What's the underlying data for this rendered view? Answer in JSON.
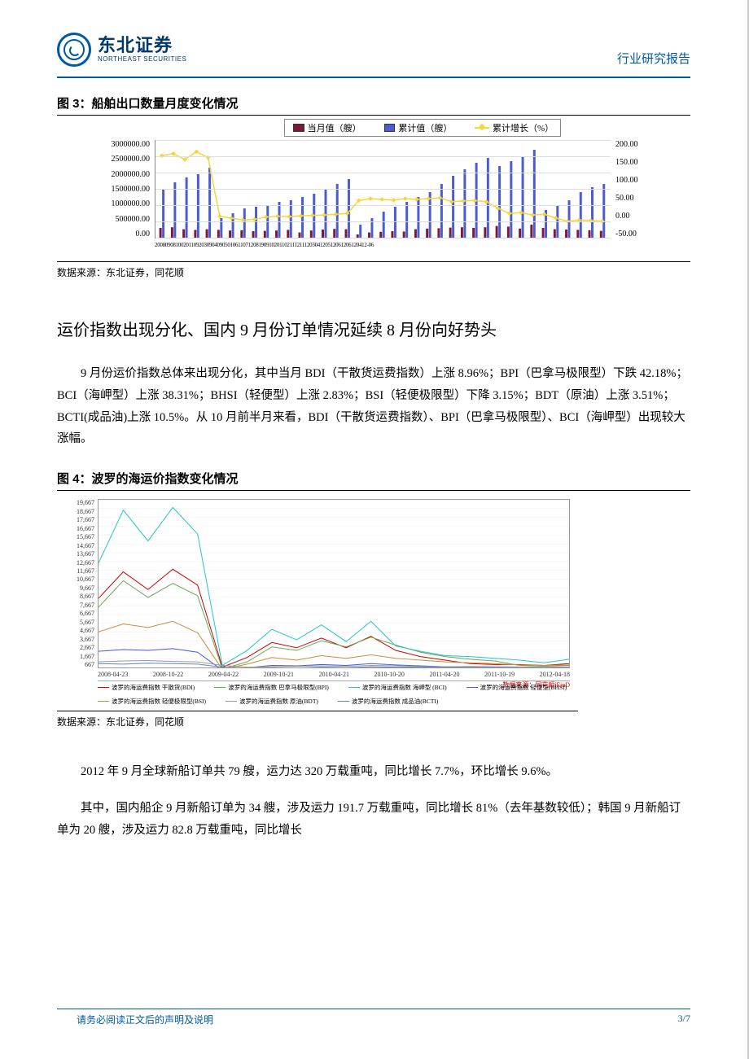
{
  "header": {
    "logo_cn": "东北证券",
    "logo_en": "NORTHEAST SECURITIES",
    "report_type": "行业研究报告"
  },
  "fig3": {
    "title": "图 3：船舶出口数量月度变化情况",
    "legend": [
      {
        "label": "当月值（艘）",
        "color": "#7a1a3a",
        "type": "bar"
      },
      {
        "label": "累计值（艘）",
        "color": "#4a5bd6",
        "type": "bar"
      },
      {
        "label": "累计增长（%）",
        "color": "#f4d63a",
        "type": "line"
      }
    ],
    "y_left": {
      "min": 0,
      "max": 3000000,
      "step": 500000,
      "labels": [
        "3000000.00",
        "2500000.00",
        "2000000.00",
        "1500000.00",
        "1000000.00",
        "500000.00",
        "0.00"
      ]
    },
    "y_right": {
      "min": -50,
      "max": 200,
      "step": 50,
      "labels": [
        "200.00",
        "150.00",
        "100.00",
        "50.00",
        "0.00",
        "-50.00"
      ]
    },
    "x_text": "2008090810020110920309040905010611071208190910201102111211120304120512061206120412-06",
    "bars": [
      {
        "m": 300000,
        "c": 1500000,
        "g": 160
      },
      {
        "m": 320000,
        "c": 1700000,
        "g": 165
      },
      {
        "m": 260000,
        "c": 1850000,
        "g": 150
      },
      {
        "m": 240000,
        "c": 1950000,
        "g": 170
      },
      {
        "m": 260000,
        "c": 2150000,
        "g": 155
      },
      {
        "m": 240000,
        "c": 600000,
        "g": 5
      },
      {
        "m": 220000,
        "c": 750000,
        "g": 0
      },
      {
        "m": 230000,
        "c": 900000,
        "g": -5
      },
      {
        "m": 200000,
        "c": 950000,
        "g": -3
      },
      {
        "m": 210000,
        "c": 1000000,
        "g": 3
      },
      {
        "m": 220000,
        "c": 1100000,
        "g": 5
      },
      {
        "m": 240000,
        "c": 1150000,
        "g": 4
      },
      {
        "m": 160000,
        "c": 1250000,
        "g": 6
      },
      {
        "m": 220000,
        "c": 1350000,
        "g": 7
      },
      {
        "m": 250000,
        "c": 1500000,
        "g": 8
      },
      {
        "m": 270000,
        "c": 1650000,
        "g": 10
      },
      {
        "m": 260000,
        "c": 1800000,
        "g": 12
      },
      {
        "m": 100000,
        "c": 400000,
        "g": 45
      },
      {
        "m": 160000,
        "c": 600000,
        "g": 50
      },
      {
        "m": 180000,
        "c": 800000,
        "g": 48
      },
      {
        "m": 200000,
        "c": 950000,
        "g": 46
      },
      {
        "m": 190000,
        "c": 1100000,
        "g": 50
      },
      {
        "m": 260000,
        "c": 1250000,
        "g": 48
      },
      {
        "m": 280000,
        "c": 1400000,
        "g": 50
      },
      {
        "m": 290000,
        "c": 1650000,
        "g": 52
      },
      {
        "m": 310000,
        "c": 1900000,
        "g": 42
      },
      {
        "m": 320000,
        "c": 2100000,
        "g": 44
      },
      {
        "m": 300000,
        "c": 2300000,
        "g": 45
      },
      {
        "m": 320000,
        "c": 2450000,
        "g": 42
      },
      {
        "m": 360000,
        "c": 2200000,
        "g": 25
      },
      {
        "m": 340000,
        "c": 2350000,
        "g": 12
      },
      {
        "m": 280000,
        "c": 2500000,
        "g": 14
      },
      {
        "m": 400000,
        "c": 2700000,
        "g": 8
      },
      {
        "m": 300000,
        "c": 850000,
        "g": 10
      },
      {
        "m": 260000,
        "c": 1000000,
        "g": 0
      },
      {
        "m": 250000,
        "c": 1150000,
        "g": -8
      },
      {
        "m": 240000,
        "c": 1400000,
        "g": -5
      },
      {
        "m": 230000,
        "c": 1550000,
        "g": -6
      },
      {
        "m": 210000,
        "c": 1650000,
        "g": -8
      }
    ],
    "source": "数据来源：东北证券，同花顺"
  },
  "section": {
    "title": "运价指数出现分化、国内 9 月份订单情况延续 8 月份向好势头",
    "para1": "9 月份运价指数总体来出现分化，其中当月 BDI（干散货运费指数）上涨 8.96%；BPI（巴拿马极限型）下跌 42.18%；BCI（海岬型）上涨 38.31%；BHSI（轻便型）上涨 2.83%；BSI（轻便极限型）下降 3.15%；BDT（原油）上涨 3.51%；BCTI(成品油)上涨 10.5%。从 10 月前半月来看，BDI（干散货运费指数）、BPI（巴拿马极限型）、BCI（海岬型）出现较大涨幅。"
  },
  "fig4": {
    "title": "图 4：波罗的海运价指数变化情况",
    "y_labels": [
      "19,667",
      "18,667",
      "17,667",
      "16,667",
      "15,667",
      "14,667",
      "13,667",
      "12,667",
      "11,667",
      "10,667",
      "9,667",
      "8,667",
      "7,667",
      "6,667",
      "5,667",
      "4,667",
      "3,667",
      "2,667",
      "1,667",
      "667"
    ],
    "x_labels": [
      "2008-04-23",
      "2008-10-22",
      "2009-04-22",
      "2009-10-21",
      "2010-04-21",
      "2010-10-20",
      "2011-04-20",
      "2011-10-19",
      "2012-04-18"
    ],
    "colors": {
      "bdi": "#cc0000",
      "bpi": "#66aa55",
      "bci": "#22c5c5",
      "bhsi": "#4a5bd6",
      "bsi": "#d08a3a",
      "bdt": "#999",
      "bcti": "#5588cc"
    },
    "series": {
      "bdi": [
        8500,
        11500,
        9500,
        11800,
        10000,
        700,
        1800,
        3500,
        2900,
        4000,
        2900,
        4200,
        2600,
        1900,
        1500,
        1100,
        1000,
        1000,
        900,
        1100
      ],
      "bpi": [
        7500,
        10500,
        8600,
        10200,
        8800,
        500,
        1300,
        3000,
        2600,
        3700,
        3000,
        4100,
        3200,
        2400,
        1900,
        1600,
        1400,
        900,
        800,
        900
      ],
      "bci": [
        12500,
        18500,
        15000,
        18800,
        15800,
        900,
        2600,
        5000,
        3800,
        5500,
        3600,
        5900,
        3100,
        2500,
        2000,
        1900,
        1700,
        1500,
        1200,
        1600
      ],
      "bhsi": [
        2500,
        2700,
        2600,
        2800,
        2400,
        350,
        650,
        900,
        850,
        1000,
        900,
        1100,
        950,
        850,
        750,
        650,
        600,
        550,
        500,
        520
      ],
      "bsi": [
        4700,
        5600,
        5200,
        5900,
        4600,
        450,
        1050,
        1800,
        1500,
        2000,
        1700,
        2100,
        1700,
        1500,
        1300,
        1200,
        1100,
        950,
        900,
        950
      ],
      "bdt": [
        1300,
        1400,
        1450,
        1350,
        1300,
        900,
        700,
        750,
        800,
        850,
        800,
        900,
        850,
        800,
        750,
        780,
        750,
        730,
        700,
        720
      ],
      "bcti": [
        1100,
        1050,
        1150,
        1100,
        1050,
        700,
        600,
        650,
        600,
        700,
        650,
        750,
        700,
        720,
        680,
        700,
        680,
        660,
        640,
        670
      ]
    },
    "legend": [
      {
        "label": "波罗的海运费指数 干散货(BDI)",
        "color": "#cc0000"
      },
      {
        "label": "波罗的海运费指数 巴拿马极限型(BPI)",
        "color": "#66aa55"
      },
      {
        "label": "波罗的海运费指数 海岬型 (BCI)",
        "color": "#22c5c5"
      },
      {
        "label": "波罗的海运费指数 轻便型(BHSI)",
        "color": "#4a5bd6"
      },
      {
        "label": "波罗的海运费指数 轻便极限型(BSI)",
        "color": "#d08a3a"
      },
      {
        "label": "波罗的海运费指数 原油(BDT)",
        "color": "#999"
      },
      {
        "label": "波罗的海运费指数 成品油(BCTI)",
        "color": "#5588cc"
      }
    ],
    "inner_source": "数据来源：同花顺iFinD",
    "source": "数据来源：东北证券，同花顺"
  },
  "paras": {
    "p2": "2012 年 9 月全球新船订单共 79 艘，运力达 320 万载重吨，同比增长 7.7%，环比增长 9.6%。",
    "p3": "其中，国内船企 9 月新船订单为 34 艘，涉及运力 191.7 万载重吨，同比增长 81%（去年基数较低）；韩国 9 月新船订单为 20 艘，涉及运力 82.8 万载重吨，同比增长"
  },
  "footer": {
    "left": "请务必阅读正文后的声明及说明",
    "right": "3/7"
  }
}
